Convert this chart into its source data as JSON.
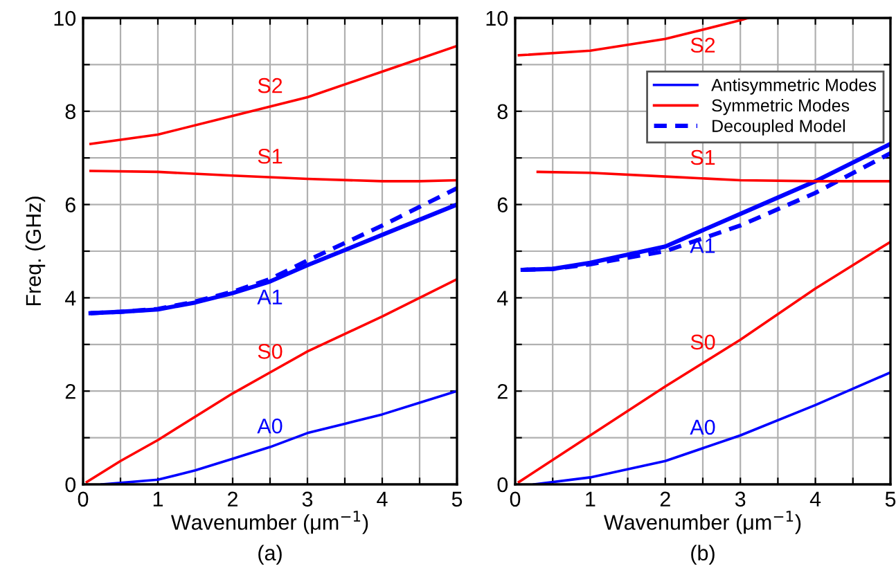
{
  "chart_data": [
    {
      "type": "line",
      "xlabel": "Wavenumber (μm$^{−1}$)",
      "ylabel": "Freq. (GHz)",
      "xlim": [
        0,
        5
      ],
      "ylim": [
        0,
        10
      ],
      "xticks": [
        0,
        {
          "value": 0.5,
          "label": null
        },
        1,
        {
          "value": 1.5,
          "label": null
        },
        2,
        {
          "value": 2.5,
          "label": null
        },
        3,
        {
          "value": 3.5,
          "label": null
        },
        4,
        {
          "value": 4.5,
          "label": null
        },
        5
      ],
      "yticks": [
        0,
        {
          "value": 1,
          "label": null
        },
        2,
        {
          "value": 3,
          "label": null
        },
        4,
        {
          "value": 5,
          "label": null
        },
        6,
        {
          "value": 7,
          "label": null
        },
        8,
        {
          "value": 9,
          "label": null
        },
        10
      ],
      "grid": true,
      "legend": false,
      "series": [
        {
          "color": "#0000ff",
          "x": [
            0.25,
            1,
            1.5,
            2,
            2.5,
            3,
            3.5,
            4,
            4.5,
            5
          ],
          "values": [
            0,
            0.1,
            0.3,
            0.55,
            0.8,
            1.1,
            1.3,
            1.5,
            1.75,
            2.0
          ]
        },
        {
          "color": "#ff0000",
          "x": [
            0.05,
            0.5,
            1,
            2,
            2.5,
            3,
            4,
            5
          ],
          "values": [
            0.05,
            0.5,
            0.95,
            1.95,
            2.4,
            2.85,
            3.6,
            4.4
          ]
        },
        {
          "color": "#0000ff",
          "x": [
            0.1,
            0.5,
            1,
            1.5,
            2,
            2.5,
            3,
            4,
            5
          ],
          "values": [
            3.67,
            3.7,
            3.75,
            3.9,
            4.1,
            4.35,
            4.7,
            5.35,
            6.0
          ]
        },
        {
          "color": "#0000ff",
          "line_style": "dashed",
          "x": [
            0.1,
            0.5,
            1,
            1.5,
            2,
            2.5,
            3,
            4,
            5
          ],
          "values": [
            3.67,
            3.7,
            3.76,
            3.92,
            4.13,
            4.4,
            4.8,
            5.55,
            6.35
          ]
        },
        {
          "color": "#ff0000",
          "x": [
            0.1,
            1,
            2,
            3,
            4,
            4.5,
            5
          ],
          "values": [
            6.72,
            6.7,
            6.62,
            6.55,
            6.5,
            6.5,
            6.52
          ]
        },
        {
          "color": "#ff0000",
          "x": [
            0.1,
            1,
            2,
            3,
            4,
            5
          ],
          "values": [
            7.3,
            7.5,
            7.9,
            8.3,
            8.85,
            9.4
          ]
        }
      ],
      "annotations": [
        "A0",
        "S0",
        "A1",
        "S1",
        "S2",
        "(a)"
      ]
    },
    {
      "type": "line",
      "xlabel": "Wavenumber (μm$^{−1}$)",
      "xlim": [
        0,
        5
      ],
      "ylim": [
        0,
        10
      ],
      "xticks": [
        0,
        {
          "value": 0.5,
          "label": null
        },
        1,
        {
          "value": 1.5,
          "label": null
        },
        2,
        {
          "value": 2.5,
          "label": null
        },
        3,
        {
          "value": 3.5,
          "label": null
        },
        4,
        {
          "value": 4.5,
          "label": null
        },
        5
      ],
      "yticks": [
        0,
        {
          "value": 1,
          "label": null
        },
        2,
        {
          "value": 3,
          "label": null
        },
        4,
        {
          "value": 5,
          "label": null
        },
        6,
        {
          "value": 7,
          "label": null
        },
        8,
        {
          "value": 9,
          "label": null
        },
        10
      ],
      "grid": true,
      "legend": "top right",
      "series": [
        {
          "name": "Antisymmetric Modes",
          "color": "#0000ff",
          "x": [
            0.25,
            1,
            2,
            3,
            4,
            5
          ],
          "values": [
            0,
            0.15,
            0.5,
            1.05,
            1.7,
            2.4
          ]
        },
        {
          "name": "Symmetric Modes",
          "color": "#ff0000",
          "x": [
            0.05,
            1,
            2,
            3,
            4,
            5
          ],
          "values": [
            0.05,
            1.05,
            2.1,
            3.1,
            4.2,
            5.2
          ]
        },
        {
          "color": "#0000ff",
          "x": [
            0.1,
            0.5,
            1,
            2,
            3,
            4,
            5
          ],
          "values": [
            4.6,
            4.62,
            4.75,
            5.1,
            5.8,
            6.5,
            7.3
          ]
        },
        {
          "name": "Decoupled Model",
          "color": "#0000ff",
          "line_style": "dashed",
          "x": [
            0.1,
            0.5,
            1,
            2,
            3,
            4,
            5
          ],
          "values": [
            4.6,
            4.62,
            4.72,
            5.0,
            5.55,
            6.25,
            7.1
          ]
        },
        {
          "color": "#ff0000",
          "x": [
            0.3,
            1,
            2,
            3,
            4,
            5
          ],
          "values": [
            6.7,
            6.68,
            6.6,
            6.52,
            6.5,
            6.5
          ]
        },
        {
          "color": "#ff0000",
          "x": [
            0.05,
            1,
            2,
            3,
            3.1
          ],
          "values": [
            9.2,
            9.3,
            9.55,
            9.95,
            10
          ]
        }
      ],
      "annotations": [
        "A0",
        "S0",
        "A1",
        "S1",
        "S2",
        "(b)"
      ]
    }
  ]
}
